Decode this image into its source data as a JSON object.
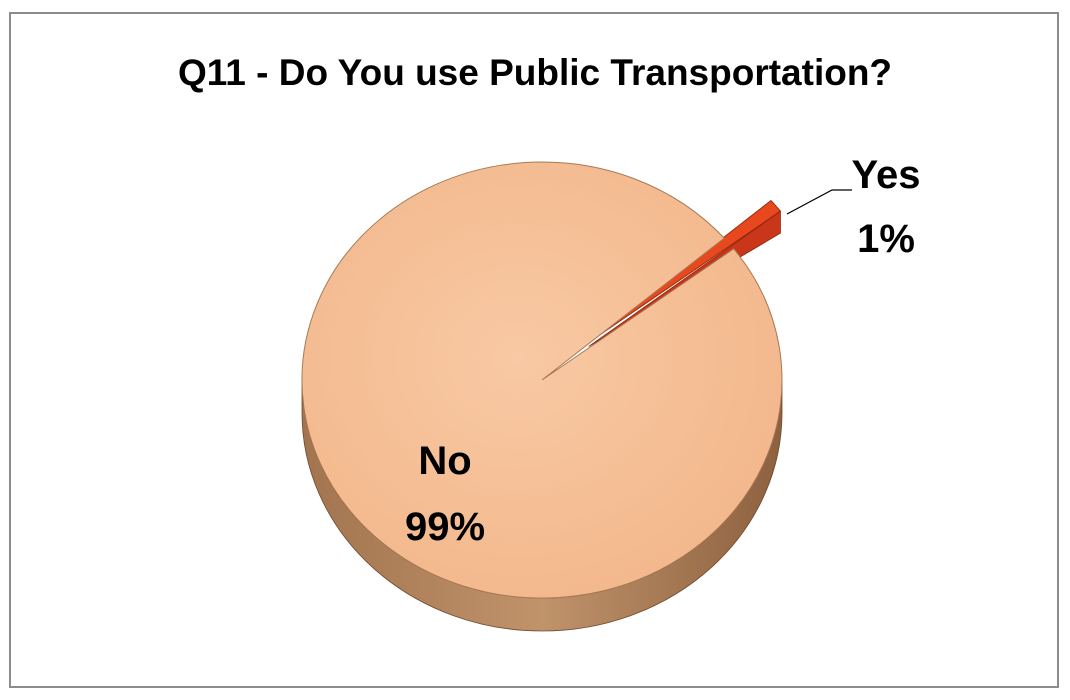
{
  "chart_data": {
    "type": "pie",
    "title": "Q11 - Do You use Public Transportation?",
    "labels": [
      "Yes",
      "No"
    ],
    "values": [
      1,
      99
    ],
    "value_labels": [
      "1%",
      "99%"
    ],
    "exploded": [
      "Yes"
    ],
    "colors": {
      "Yes": "#e8481e",
      "No": "#f6bd93"
    },
    "style": "3d"
  }
}
